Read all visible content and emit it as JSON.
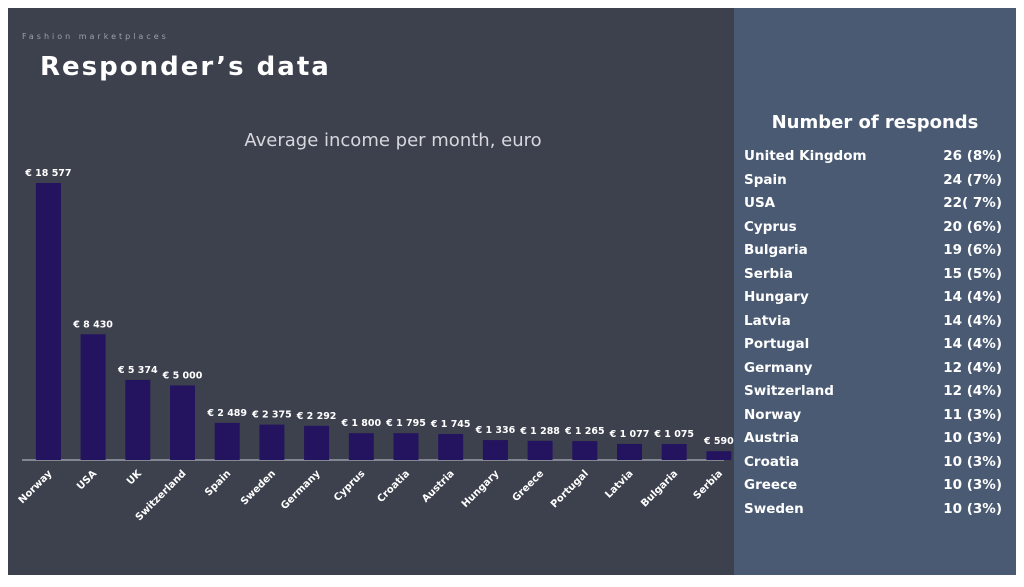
{
  "slide": {
    "eyebrow": "Fashion marketplaces",
    "title": "Responder’s data"
  },
  "colors": {
    "left_panel": "#3d414d",
    "right_panel": "#4a5a72",
    "bar": "#24135f",
    "text": "#ffffff"
  },
  "chart_data": {
    "type": "bar",
    "title": "Average income per month, euro",
    "xlabel": "",
    "ylabel": "",
    "ylim": [
      0,
      18577
    ],
    "grid": false,
    "categories": [
      "Norway",
      "USA",
      "UK",
      "Switzerland",
      "Spain",
      "Sweden",
      "Germany",
      "Cyprus",
      "Croatia",
      "Austria",
      "Hungary",
      "Greece",
      "Portugal",
      "Latvia",
      "Bulgaria",
      "Serbia"
    ],
    "values": [
      18577,
      8430,
      5374,
      5000,
      2489,
      2375,
      2292,
      1800,
      1795,
      1745,
      1336,
      1288,
      1265,
      1077,
      1075,
      590
    ],
    "data_labels": [
      "€ 18 577",
      "€ 8 430",
      "€ 5 374",
      "€ 5 000",
      "€ 2 489",
      "€ 2 375",
      "€ 2 292",
      "€ 1 800",
      "€ 1 795",
      "€ 1 745",
      "€ 1 336",
      "€ 1 288",
      "€ 1 265",
      "€ 1 077",
      "€ 1 075",
      "€ 590"
    ]
  },
  "responds": {
    "title": "Number of responds",
    "rows": [
      {
        "country": "United Kingdom",
        "value": "26 (8%)"
      },
      {
        "country": "Spain",
        "value": "24 (7%)"
      },
      {
        "country": "USA",
        "value": "22( 7%)"
      },
      {
        "country": "Cyprus",
        "value": "20 (6%)"
      },
      {
        "country": "Bulgaria",
        "value": "19 (6%)"
      },
      {
        "country": "Serbia",
        "value": "15 (5%)"
      },
      {
        "country": "Hungary",
        "value": "14 (4%)"
      },
      {
        "country": "Latvia",
        "value": "14 (4%)"
      },
      {
        "country": "Portugal",
        "value": "14 (4%)"
      },
      {
        "country": "Germany",
        "value": "12 (4%)"
      },
      {
        "country": "Switzerland",
        "value": "12 (4%)"
      },
      {
        "country": "Norway",
        "value": "11 (3%)"
      },
      {
        "country": "Austria",
        "value": "10 (3%)"
      },
      {
        "country": "Croatia",
        "value": "10 (3%)"
      },
      {
        "country": "Greece",
        "value": "10 (3%)"
      },
      {
        "country": "Sweden",
        "value": "10 (3%)"
      }
    ]
  }
}
